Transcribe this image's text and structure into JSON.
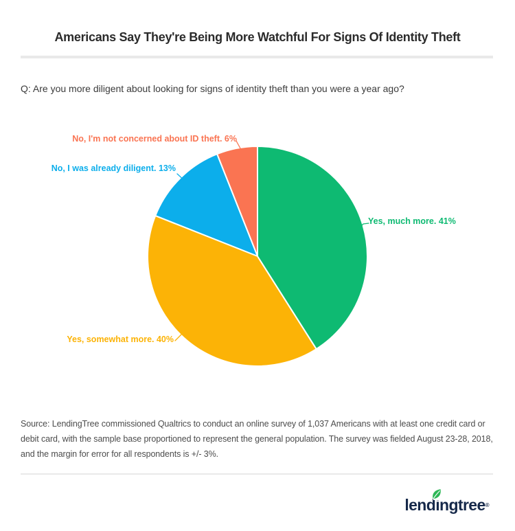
{
  "header": {
    "title": "Americans Say They're Being More Watchful For Signs Of Identity Theft"
  },
  "question": {
    "text": "Q: Are you more diligent about looking for signs of identity theft than you were a year ago?"
  },
  "chart_data": {
    "type": "pie",
    "title": "Americans Say They're Being More Watchful For Signs Of Identity Theft",
    "question": "Q: Are you more diligent about looking for signs of identity theft than you were a year ago?",
    "start_angle_deg": -90,
    "direction": "clockwise",
    "label_format": "{label} {value}%",
    "slices": [
      {
        "label": "Yes, much more.",
        "value": 41,
        "color": "#0eba72"
      },
      {
        "label": "Yes, somewhat more.",
        "value": 40,
        "color": "#fcb306"
      },
      {
        "label": "No, I was already diligent.",
        "value": 13,
        "color": "#0caeeb"
      },
      {
        "label": "No, I'm not concerned about ID theft.",
        "value": 6,
        "color": "#fa7452"
      }
    ]
  },
  "source": {
    "lines": [
      "Source: LendingTree commissioned Qualtrics to conduct an online survey of 1,037 Americans with at least one credit card or",
      "debit card, with the sample base proportioned to represent the general population. The survey was fielded August 23-28, 2018,",
      "and the margin for error for all respondents is +/- 3%."
    ]
  },
  "footer": {
    "logo_text": "lendingtree",
    "registered_mark": "®"
  }
}
